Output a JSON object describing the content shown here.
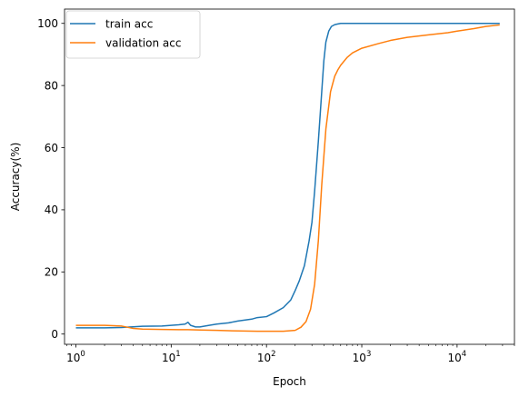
{
  "chart_data": {
    "type": "line",
    "title": "",
    "xlabel": "Epoch",
    "ylabel": "Accuracy(%)",
    "xscale": "log",
    "xlim": [
      0.76,
      40000
    ],
    "ylim": [
      -3.3,
      104.6
    ],
    "x_ticks": [
      {
        "value": 1,
        "base": "10",
        "exp": "0"
      },
      {
        "value": 10,
        "base": "10",
        "exp": "1"
      },
      {
        "value": 100,
        "base": "10",
        "exp": "2"
      },
      {
        "value": 1000,
        "base": "10",
        "exp": "3"
      },
      {
        "value": 10000,
        "base": "10",
        "exp": "4"
      }
    ],
    "y_ticks": [
      0,
      20,
      40,
      60,
      80,
      100
    ],
    "grid": false,
    "legend_position": "top-left",
    "series": [
      {
        "name": "train acc",
        "color": "#1f77b4",
        "x": [
          1,
          2,
          3,
          5,
          8,
          12,
          14,
          15,
          16,
          18,
          20,
          25,
          30,
          40,
          50,
          70,
          80,
          100,
          120,
          150,
          180,
          200,
          220,
          250,
          280,
          300,
          320,
          350,
          380,
          400,
          420,
          450,
          480,
          520,
          560,
          600,
          700,
          1000,
          2000,
          5000,
          10000,
          28000
        ],
        "y": [
          2,
          2,
          2.1,
          2.5,
          2.6,
          3,
          3.2,
          3.8,
          2.8,
          2.3,
          2.3,
          2.8,
          3.2,
          3.6,
          4.2,
          4.8,
          5.3,
          5.6,
          6.8,
          8.5,
          11,
          14,
          17,
          22,
          30,
          36,
          46,
          62,
          78,
          88,
          94,
          97.5,
          99,
          99.6,
          99.8,
          100,
          100,
          100,
          100,
          100,
          100,
          100
        ]
      },
      {
        "name": "validation acc",
        "color": "#ff7f0e",
        "x": [
          1,
          2,
          3,
          4,
          5,
          8,
          12,
          15,
          20,
          30,
          50,
          80,
          100,
          150,
          200,
          230,
          260,
          290,
          320,
          350,
          380,
          420,
          470,
          520,
          560,
          600,
          700,
          800,
          1000,
          1500,
          2000,
          3000,
          5000,
          8000,
          10000,
          15000,
          20000,
          28000
        ],
        "y": [
          2.8,
          2.8,
          2.6,
          1.8,
          1.6,
          1.5,
          1.4,
          1.4,
          1.3,
          1.2,
          1.0,
          0.9,
          0.9,
          0.9,
          1.2,
          2.2,
          4,
          8,
          16,
          30,
          48,
          66,
          78,
          83,
          85,
          86.5,
          89,
          90.5,
          92,
          93.5,
          94.5,
          95.5,
          96.3,
          97,
          97.5,
          98.3,
          99,
          99.5
        ]
      }
    ]
  }
}
